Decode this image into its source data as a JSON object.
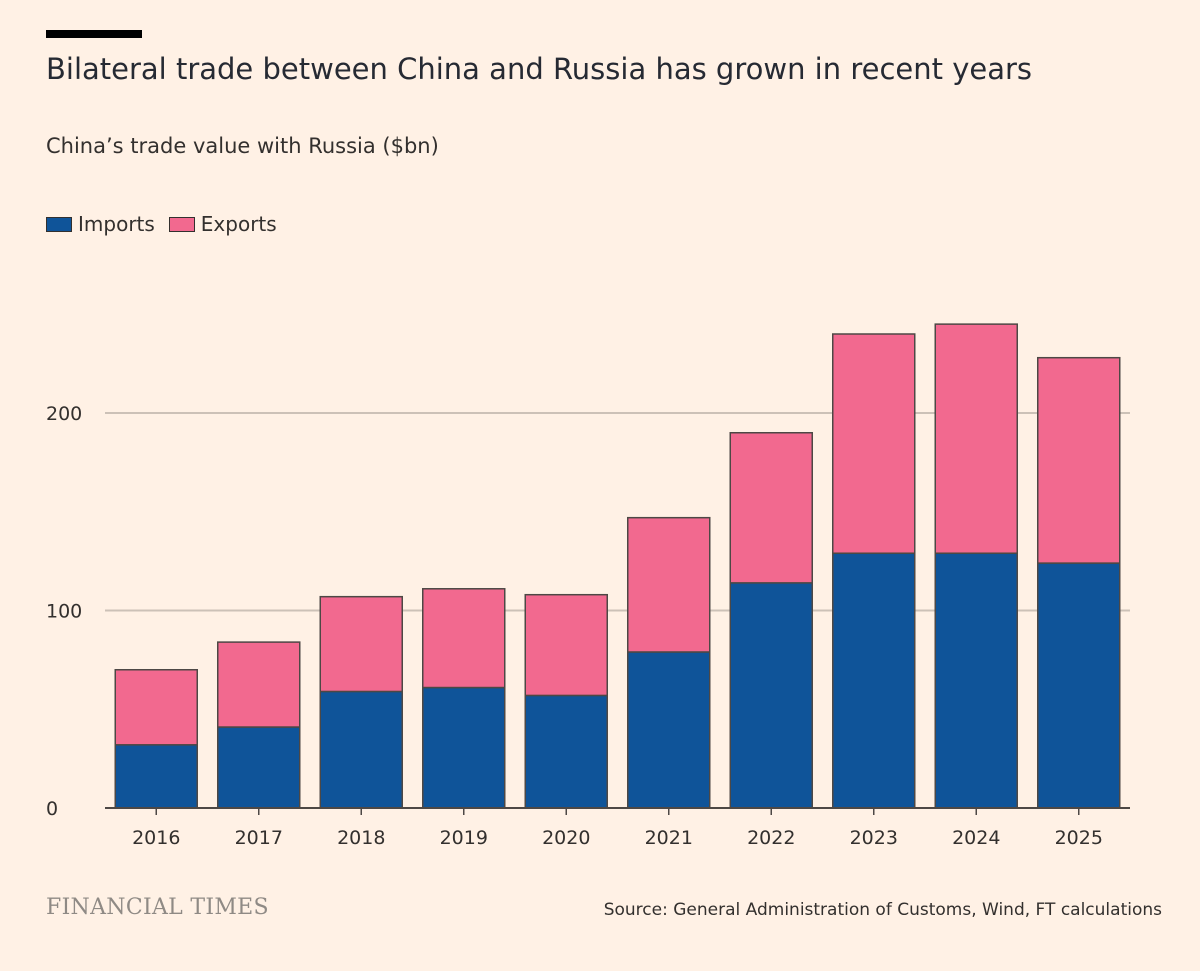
{
  "header": {
    "title": "Bilateral trade between China and Russia has grown in recent years",
    "subtitle": "China’s trade value with Russia ($bn)"
  },
  "footer": {
    "brand": "FINANCIAL TIMES",
    "source": "Source: General Administration of Customs, Wind, FT calculations"
  },
  "colors": {
    "imports": "#0f5499",
    "exports": "#f2698f",
    "background": "#fff1e5",
    "grid": "#ccc1b7"
  },
  "chart_data": {
    "type": "bar",
    "stacked": true,
    "title": "Bilateral trade between China and Russia has grown in recent years",
    "subtitle": "China’s trade value with Russia ($bn)",
    "categories": [
      "2016",
      "2017",
      "2018",
      "2019",
      "2020",
      "2021",
      "2022",
      "2023",
      "2024",
      "2025"
    ],
    "series": [
      {
        "name": "Imports",
        "color": "#0f5499",
        "values": [
          32,
          41,
          59,
          61,
          57,
          79,
          114,
          129,
          129,
          124
        ]
      },
      {
        "name": "Exports",
        "color": "#f2698f",
        "values": [
          38,
          43,
          48,
          50,
          51,
          68,
          76,
          111,
          116,
          104
        ]
      }
    ],
    "ylim": [
      0,
      250
    ],
    "yticks": [
      "0",
      "100",
      "200"
    ],
    "grid": true,
    "legend": "top-left"
  }
}
